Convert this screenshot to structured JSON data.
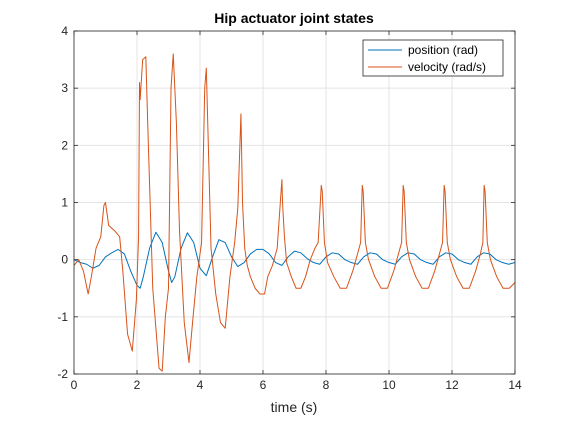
{
  "chart_data": {
    "type": "line",
    "title": "Hip actuator joint states",
    "xlabel": "time (s)",
    "ylabel": "",
    "xlim": [
      0,
      14
    ],
    "ylim": [
      -2,
      4
    ],
    "xticks": [
      0,
      2,
      4,
      6,
      8,
      10,
      12,
      14
    ],
    "yticks": [
      -2,
      -1,
      0,
      1,
      2,
      3,
      4
    ],
    "xtick_labels": [
      "0",
      "2",
      "4",
      "6",
      "8",
      "10",
      "12",
      "14"
    ],
    "ytick_labels": [
      "-2",
      "-1",
      "0",
      "1",
      "2",
      "3",
      "4"
    ],
    "grid": true,
    "legend_position": "top-right",
    "series": [
      {
        "name": "position (rad)",
        "color": "#0072BD",
        "x": [
          0,
          0.2,
          0.4,
          0.6,
          0.8,
          1.0,
          1.2,
          1.4,
          1.6,
          1.8,
          2.0,
          2.1,
          2.2,
          2.4,
          2.6,
          2.8,
          3.0,
          3.1,
          3.2,
          3.4,
          3.6,
          3.8,
          4.0,
          4.2,
          4.4,
          4.6,
          4.8,
          5.0,
          5.2,
          5.4,
          5.6,
          5.8,
          6.0,
          6.2,
          6.4,
          6.6,
          6.8,
          7.0,
          7.2,
          7.4,
          7.6,
          7.8,
          8.0,
          8.2,
          8.4,
          8.6,
          8.8,
          9.0,
          9.2,
          9.4,
          9.6,
          9.8,
          10.0,
          10.2,
          10.4,
          10.6,
          10.8,
          11.0,
          11.2,
          11.4,
          11.6,
          11.8,
          12.0,
          12.2,
          12.4,
          12.6,
          12.8,
          13.0,
          13.2,
          13.4,
          13.6,
          13.8,
          14.0
        ],
        "values": [
          0.0,
          -0.05,
          -0.08,
          -0.15,
          -0.1,
          0.05,
          0.12,
          0.18,
          0.1,
          -0.2,
          -0.45,
          -0.5,
          -0.3,
          0.2,
          0.48,
          0.3,
          -0.2,
          -0.4,
          -0.3,
          0.2,
          0.47,
          0.3,
          -0.15,
          -0.28,
          0.05,
          0.35,
          0.3,
          0.05,
          -0.12,
          -0.05,
          0.1,
          0.18,
          0.18,
          0.1,
          -0.05,
          -0.1,
          0.05,
          0.15,
          0.12,
          0.02,
          -0.05,
          -0.08,
          0.05,
          0.12,
          0.1,
          0.0,
          -0.05,
          -0.08,
          0.05,
          0.12,
          0.1,
          0.0,
          -0.05,
          -0.08,
          0.05,
          0.12,
          0.1,
          0.0,
          -0.05,
          -0.08,
          0.05,
          0.12,
          0.1,
          0.0,
          -0.05,
          -0.08,
          0.05,
          0.12,
          0.1,
          0.0,
          -0.05,
          -0.08,
          -0.05
        ]
      },
      {
        "name": "velocity (rad/s)",
        "color": "#D95319",
        "x": [
          0,
          0.15,
          0.3,
          0.45,
          0.55,
          0.7,
          0.85,
          0.95,
          1.0,
          1.1,
          1.3,
          1.45,
          1.55,
          1.7,
          1.85,
          1.98,
          2.05,
          2.08,
          2.1,
          2.18,
          2.28,
          2.35,
          2.5,
          2.7,
          2.8,
          2.9,
          3.0,
          3.08,
          3.15,
          3.25,
          3.35,
          3.5,
          3.65,
          3.78,
          3.9,
          4.05,
          4.15,
          4.2,
          4.25,
          4.35,
          4.5,
          4.65,
          4.8,
          4.95,
          5.1,
          5.2,
          5.3,
          5.35,
          5.42,
          5.5,
          5.6,
          5.75,
          5.9,
          6.05,
          6.15,
          6.3,
          6.45,
          6.55,
          6.6,
          6.62,
          6.68,
          6.75,
          6.9,
          7.05,
          7.2,
          7.35,
          7.5,
          7.65,
          7.75,
          7.85,
          7.88,
          7.95,
          8.05,
          8.25,
          8.45,
          8.65,
          8.85,
          9.0,
          9.1,
          9.15,
          9.18,
          9.25,
          9.35,
          9.55,
          9.75,
          9.95,
          10.15,
          10.3,
          10.4,
          10.45,
          10.48,
          10.55,
          10.65,
          10.85,
          11.05,
          11.25,
          11.45,
          11.6,
          11.7,
          11.75,
          11.78,
          11.85,
          11.95,
          12.15,
          12.35,
          12.55,
          12.75,
          12.9,
          12.98,
          13.02,
          13.05,
          13.12,
          13.22,
          13.42,
          13.62,
          13.82,
          14.0
        ],
        "values": [
          -0.1,
          0.0,
          -0.2,
          -0.6,
          -0.3,
          0.2,
          0.4,
          0.95,
          1.0,
          0.6,
          0.5,
          0.4,
          -0.2,
          -1.3,
          -1.6,
          -0.7,
          0.4,
          3.1,
          2.8,
          3.5,
          3.55,
          2.2,
          -0.5,
          -1.9,
          -1.95,
          -1.0,
          -0.5,
          3.0,
          3.6,
          2.4,
          0.5,
          -1.1,
          -1.8,
          -1.0,
          -0.3,
          0.3,
          3.0,
          3.35,
          2.3,
          0.2,
          -0.6,
          -1.1,
          -1.2,
          -0.3,
          0.3,
          0.9,
          2.55,
          1.0,
          0.2,
          -0.1,
          -0.3,
          -0.5,
          -0.6,
          -0.6,
          -0.3,
          -0.1,
          0.2,
          1.0,
          1.4,
          1.0,
          0.4,
          -0.05,
          -0.3,
          -0.5,
          -0.5,
          -0.3,
          0.0,
          0.2,
          0.3,
          1.3,
          1.2,
          0.3,
          -0.05,
          -0.3,
          -0.5,
          -0.5,
          -0.2,
          0.1,
          0.3,
          1.3,
          1.2,
          0.3,
          0.0,
          -0.3,
          -0.5,
          -0.5,
          -0.2,
          0.1,
          0.3,
          1.3,
          1.2,
          0.3,
          0.0,
          -0.3,
          -0.5,
          -0.5,
          -0.2,
          0.1,
          0.3,
          1.3,
          1.2,
          0.3,
          0.0,
          -0.3,
          -0.5,
          -0.5,
          -0.2,
          0.1,
          0.3,
          1.3,
          1.2,
          0.3,
          0.0,
          -0.3,
          -0.5,
          -0.5,
          -0.4
        ]
      }
    ]
  }
}
